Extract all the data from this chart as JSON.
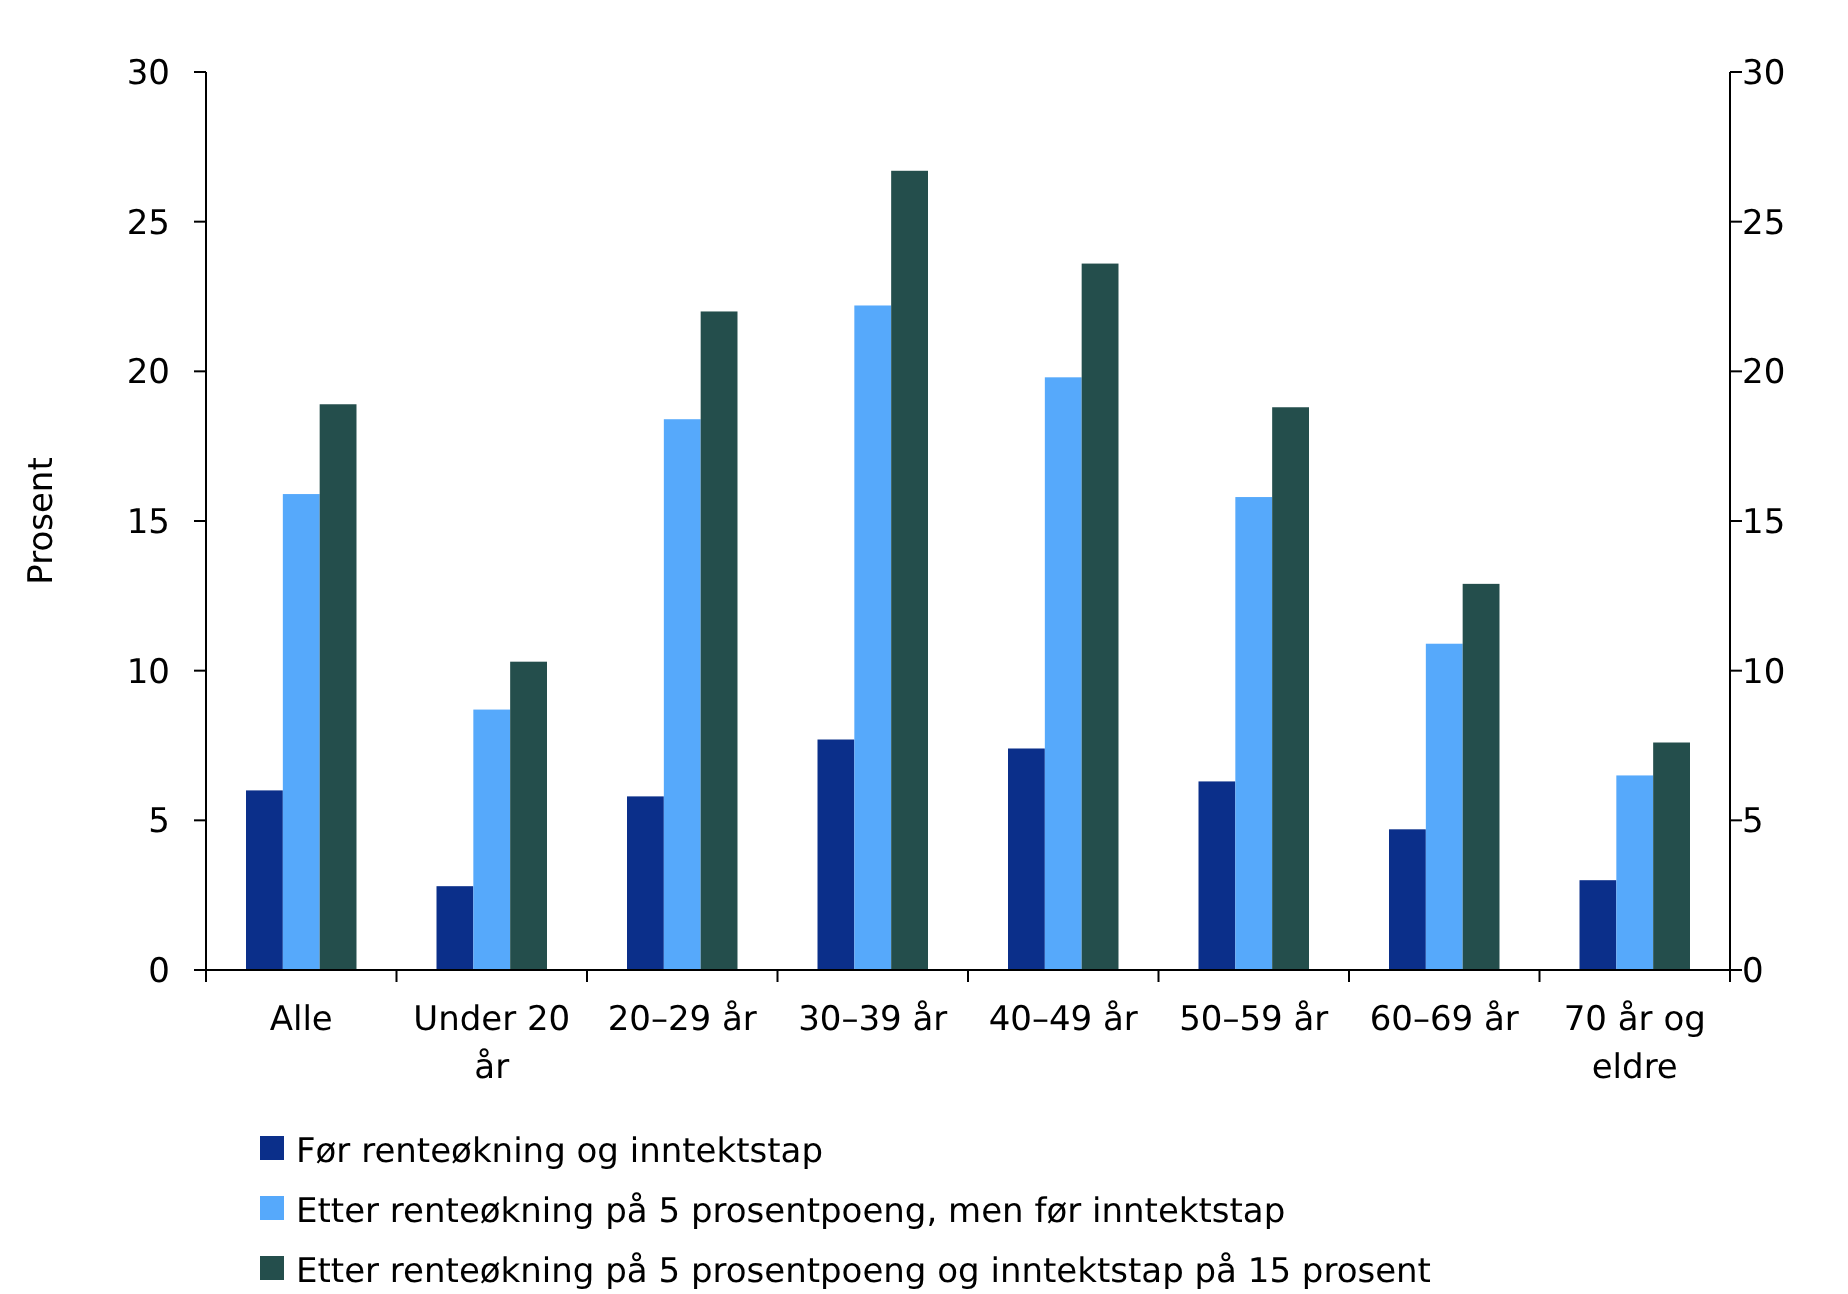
{
  "chart_data": {
    "type": "bar",
    "ylabel": "Prosent",
    "categories": [
      "Alle",
      "Under 20 år",
      "20–29 år",
      "30–39 år",
      "40–49 år",
      "50–59 år",
      "60–69 år",
      "70 år og eldre"
    ],
    "series": [
      {
        "name": "Før renteøkning og inntektstap",
        "color": "#0b2f8a",
        "values": [
          6.0,
          2.8,
          5.8,
          7.7,
          7.4,
          6.3,
          4.7,
          3.0
        ]
      },
      {
        "name": "Etter renteøkning på 5 prosentpoeng, men før inntektstap",
        "color": "#56a9fb",
        "values": [
          15.9,
          8.7,
          18.4,
          22.2,
          19.8,
          15.8,
          10.9,
          6.5
        ]
      },
      {
        "name": "Etter renteøkning på 5 prosentpoeng og inntektstap på 15 prosent",
        "color": "#244e4c",
        "values": [
          18.9,
          10.3,
          22.0,
          26.7,
          23.6,
          18.8,
          12.9,
          7.6
        ]
      }
    ],
    "ylim": [
      0,
      30
    ],
    "yticks": [
      0,
      5,
      10,
      15,
      20,
      25,
      30
    ],
    "y2lim": [
      0,
      30
    ],
    "y2ticks": [
      0,
      5,
      10,
      15,
      20,
      25,
      30
    ],
    "grid": false,
    "legend": "bottom left"
  }
}
